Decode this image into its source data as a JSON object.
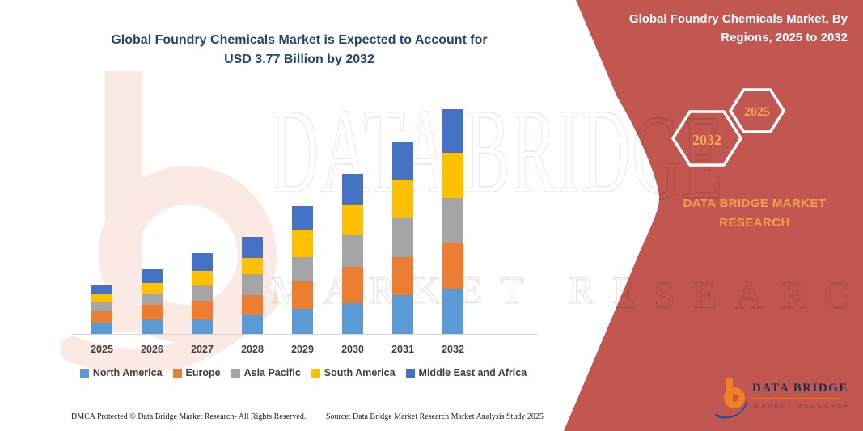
{
  "chart": {
    "title_line1": "Global Foundry Chemicals Market is Expected to Account for",
    "title_line2": "USD 3.77 Billion by 2032"
  },
  "chart_data": {
    "type": "bar",
    "stacked": true,
    "title": "Global Foundry Chemicals Market is Expected to Account for USD 3.77 Billion by 2032",
    "unit": "USD Billion",
    "categories": [
      "2025",
      "2026",
      "2027",
      "2028",
      "2029",
      "2030",
      "2031",
      "2032"
    ],
    "series": [
      {
        "name": "North America",
        "color": "#5B9BD5",
        "values": [
          0.18,
          0.24,
          0.25,
          0.33,
          0.42,
          0.52,
          0.65,
          0.76
        ]
      },
      {
        "name": "Europe",
        "color": "#ED7D31",
        "values": [
          0.2,
          0.25,
          0.31,
          0.32,
          0.45,
          0.61,
          0.64,
          0.77
        ]
      },
      {
        "name": "Asia Pacific",
        "color": "#A5A5A5",
        "values": [
          0.14,
          0.18,
          0.25,
          0.36,
          0.41,
          0.54,
          0.67,
          0.75
        ]
      },
      {
        "name": "South America",
        "color": "#FFC000",
        "values": [
          0.14,
          0.18,
          0.25,
          0.27,
          0.47,
          0.5,
          0.63,
          0.76
        ]
      },
      {
        "name": "Middle East and Africa",
        "color": "#4472C4",
        "values": [
          0.15,
          0.23,
          0.3,
          0.35,
          0.39,
          0.52,
          0.64,
          0.73
        ]
      }
    ],
    "totals": [
      0.81,
      1.08,
      1.36,
      1.63,
      2.14,
      2.69,
      3.23,
      3.77
    ],
    "ylim": [
      0,
      3.77
    ],
    "grid": false,
    "legend_position": "bottom"
  },
  "sidebar": {
    "title_line1": "Global Foundry Chemicals Market, By",
    "title_line2": "Regions, 2025 to 2032",
    "hexagon_back_year": "2032",
    "hexagon_front_year": "2025",
    "brand_line1": "DATA BRIDGE MARKET",
    "brand_line2": "RESEARCH",
    "background_color": "#C15750",
    "accent_color": "#F2A04B",
    "logo": {
      "name_text": "DATA BRIDGE",
      "tagline_text": "MARKET RESEARCH"
    }
  },
  "watermark": {
    "row1": "DATA BRIDGE",
    "row2": "MARKET RESEARCH"
  },
  "footer": {
    "left_text": "DMCA Protected © Data Bridge Market Research-  All Rights Reserved.",
    "right_text": "Source: Data Bridge Market Research  Market Analysis Study 2025"
  }
}
